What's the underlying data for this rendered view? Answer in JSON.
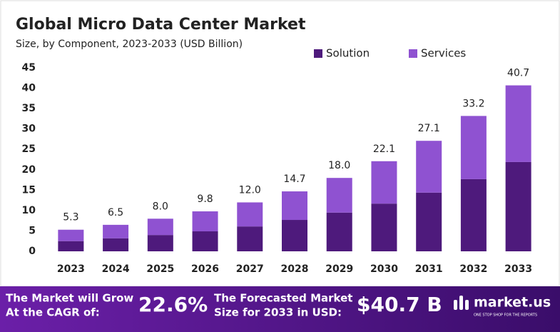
{
  "chart_data": {
    "type": "stacked-bar",
    "title": "Global Micro Data Center Market",
    "subtitle": "Size, by Component, 2023-2033 (USD Billion)",
    "categories": [
      "2023",
      "2024",
      "2025",
      "2026",
      "2027",
      "2028",
      "2029",
      "2030",
      "2031",
      "2032",
      "2033"
    ],
    "series": [
      {
        "name": "Solution",
        "color": "#4e1a7c",
        "values": [
          2.5,
          3.2,
          4.0,
          4.9,
          6.1,
          7.7,
          9.5,
          11.7,
          14.4,
          17.7,
          21.9
        ]
      },
      {
        "name": "Services",
        "color": "#8f52d1",
        "values": [
          2.8,
          3.3,
          4.0,
          4.9,
          5.9,
          7.0,
          8.5,
          10.4,
          12.7,
          15.5,
          18.8
        ]
      }
    ],
    "totals": {
      "values": [
        5.3,
        6.5,
        8,
        9.8,
        12,
        14.7,
        18,
        22.1,
        27.1,
        33.2,
        40.7
      ],
      "value_labels": [
        "5.3",
        "6.5",
        "8.0",
        "9.8",
        "12.0",
        "14.7",
        "18.0",
        "22.1",
        "27.1",
        "33.2",
        "40.7"
      ]
    },
    "ylim": [
      0,
      45
    ],
    "yticks": [
      0,
      5,
      10,
      15,
      20,
      25,
      30,
      35,
      40,
      45
    ],
    "grid": false,
    "legend": "top-right"
  },
  "footer": {
    "cagr_label": [
      "The Market will Grow",
      "At the CAGR of:"
    ],
    "cagr": "22.6%",
    "forecast_label": [
      "The Forecasted Market",
      "Size for 2033 in USD:"
    ],
    "forecast": "$40.7 B",
    "brand": "market.us",
    "tagline": "ONE STOP SHOP FOR THE REPORTS"
  }
}
